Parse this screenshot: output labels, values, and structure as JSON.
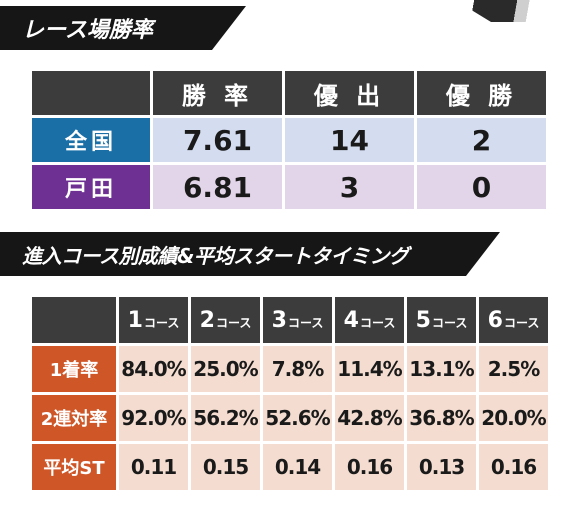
{
  "section1": {
    "title": "レース場勝率",
    "columns": [
      "勝 率",
      "優 出",
      "優 勝"
    ],
    "rows": [
      {
        "label": "全国",
        "values": [
          "7.61",
          "14",
          "2"
        ]
      },
      {
        "label": "戸田",
        "values": [
          "6.81",
          "3",
          "0"
        ]
      }
    ]
  },
  "section2": {
    "title": "進入コース別成績&平均スタートタイミング",
    "columns": [
      {
        "num": "1",
        "unit": "コース"
      },
      {
        "num": "2",
        "unit": "コース"
      },
      {
        "num": "3",
        "unit": "コース"
      },
      {
        "num": "4",
        "unit": "コース"
      },
      {
        "num": "5",
        "unit": "コース"
      },
      {
        "num": "6",
        "unit": "コース"
      }
    ],
    "rows": [
      {
        "label": "1着率",
        "values": [
          "84.0%",
          "25.0%",
          "7.8%",
          "11.4%",
          "13.1%",
          "2.5%"
        ]
      },
      {
        "label": "2連対率",
        "values": [
          "92.0%",
          "56.2%",
          "52.6%",
          "42.8%",
          "36.8%",
          "20.0%"
        ]
      },
      {
        "label": "平均ST",
        "values": [
          "0.11",
          "0.15",
          "0.14",
          "0.16",
          "0.13",
          "0.16"
        ]
      }
    ]
  },
  "colors": {
    "banner": "#161616",
    "header": "#3c3c3c",
    "national_label": "#1b6fa7",
    "national_cell": "#d4dcef",
    "toda_label": "#6e3193",
    "toda_cell": "#e3d5e9",
    "stats_label": "#cf5627",
    "stats_cell": "#f4ddd0"
  }
}
